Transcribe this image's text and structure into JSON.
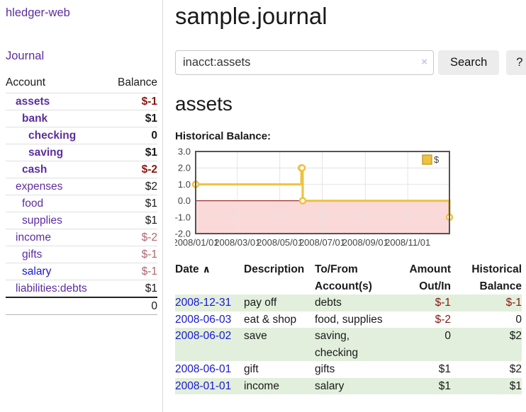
{
  "colors": {
    "purple": "#5b2e9e",
    "blue": "#1717cf",
    "neg-strong": "#871812",
    "neg-soft": "#b06570",
    "text": "#1a1a1a",
    "row-green": "#e2efdc",
    "border-light": "#e0e0e0",
    "divider": "#d8d8d8",
    "btn-bg": "#ececec",
    "input-border": "#c8c8c8",
    "clear-icon": "#cfc2e2"
  },
  "sidebar": {
    "brand": "hledger-web",
    "nav_journal": "Journal",
    "accounts_table": {
      "headers": [
        "Account",
        "Balance"
      ],
      "rows": [
        {
          "name": "assets",
          "indent": 0,
          "bold": true,
          "link_color": "purple",
          "balance": "$-1",
          "balance_style": "neg-strong"
        },
        {
          "name": "bank",
          "indent": 1,
          "bold": true,
          "link_color": "purple",
          "balance": "$1",
          "balance_style": "pos"
        },
        {
          "name": "checking",
          "indent": 2,
          "bold": true,
          "link_color": "purple",
          "balance": "0",
          "balance_style": "pos"
        },
        {
          "name": "saving",
          "indent": 2,
          "bold": true,
          "link_color": "purple",
          "balance": "$1",
          "balance_style": "pos"
        },
        {
          "name": "cash",
          "indent": 1,
          "bold": true,
          "link_color": "purple",
          "balance": "$-2",
          "balance_style": "neg-strong"
        },
        {
          "name": "expenses",
          "indent": 0,
          "bold": false,
          "link_color": "purple",
          "balance": "$2",
          "balance_style": "pos"
        },
        {
          "name": "food",
          "indent": 1,
          "bold": false,
          "link_color": "purple",
          "balance": "$1",
          "balance_style": "pos"
        },
        {
          "name": "supplies",
          "indent": 1,
          "bold": false,
          "link_color": "purple",
          "balance": "$1",
          "balance_style": "pos"
        },
        {
          "name": "income",
          "indent": 0,
          "bold": false,
          "link_color": "purple",
          "balance": "$-2",
          "balance_style": "neg-soft"
        },
        {
          "name": "gifts",
          "indent": 1,
          "bold": false,
          "link_color": "purple",
          "balance": "$-1",
          "balance_style": "neg-soft"
        },
        {
          "name": "salary",
          "indent": 1,
          "bold": false,
          "link_color": "blue",
          "balance": "$-1",
          "balance_style": "neg-soft"
        },
        {
          "name": "liabilities:debts",
          "indent": 0,
          "bold": false,
          "link_color": "purple",
          "balance": "$1",
          "balance_style": "pos"
        }
      ],
      "total": "0"
    }
  },
  "header": {
    "title": "sample.journal"
  },
  "search": {
    "value": "inacct:assets",
    "clear_icon": "×",
    "button_label": "Search",
    "help_label": "?"
  },
  "account_page": {
    "heading": "assets",
    "chart_title": "Historical Balance:"
  },
  "chart_data": {
    "type": "line",
    "step": true,
    "title": "Historical Balance:",
    "series": [
      {
        "name": "$",
        "color": "#edc240",
        "color_border": "#c9a22e",
        "points": [
          [
            "2008/01/01",
            1
          ],
          [
            "2008/06/01",
            2
          ],
          [
            "2008/06/02",
            2
          ],
          [
            "2008/06/03",
            0
          ],
          [
            "2008/12/31",
            -1
          ]
        ]
      }
    ],
    "x_domain": [
      "2008/01/01",
      "2008/12/31"
    ],
    "x_ticks": [
      "2008/01/01",
      "2008/03/01",
      "2008/05/01",
      "2008/07/01",
      "2008/09/01",
      "2008/11/01"
    ],
    "y_ticks": [
      3.0,
      2.0,
      1.0,
      0.0,
      -1.0,
      -2.0
    ],
    "ylim": [
      -2,
      3
    ],
    "grid": true,
    "negative_fill": "#fbd9d9",
    "zero_line_color": "#8b0000",
    "plot_border_color": "#545454",
    "gridline_color": "#e4e4e4",
    "legend": {
      "label": "$",
      "position": "top-right"
    }
  },
  "register_table": {
    "headers": {
      "date": "Date",
      "sort_icon": "∧",
      "description": "Description",
      "accounts": "To/From Account(s)",
      "amount": "Amount Out/In",
      "balance": "Historical Balance"
    },
    "rows": [
      {
        "date": "2008-12-31",
        "description": "pay off",
        "accounts": "debts",
        "amount": "$-1",
        "amount_neg": true,
        "balance": "$-1",
        "balance_neg": true
      },
      {
        "date": "2008-06-03",
        "description": "eat & shop",
        "accounts": "food, supplies",
        "amount": "$-2",
        "amount_neg": true,
        "balance": "0",
        "balance_neg": false
      },
      {
        "date": "2008-06-02",
        "description": "save",
        "accounts": "saving, checking",
        "amount": "0",
        "amount_neg": false,
        "balance": "$2",
        "balance_neg": false
      },
      {
        "date": "2008-06-01",
        "description": "gift",
        "accounts": "gifts",
        "amount": "$1",
        "amount_neg": false,
        "balance": "$2",
        "balance_neg": false
      },
      {
        "date": "2008-01-01",
        "description": "income",
        "accounts": "salary",
        "amount": "$1",
        "amount_neg": false,
        "balance": "$1",
        "balance_neg": false
      }
    ]
  }
}
